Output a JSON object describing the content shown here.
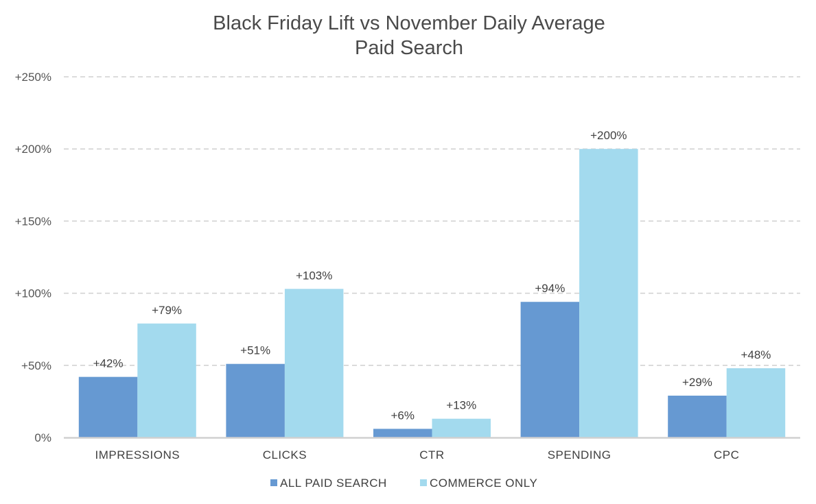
{
  "chart_data": {
    "type": "bar",
    "title": "Black Friday Lift vs November Daily Average",
    "subtitle": "Paid Search",
    "categories": [
      "IMPRESSIONS",
      "CLICKS",
      "CTR",
      "SPENDING",
      "CPC"
    ],
    "series": [
      {
        "name": "ALL PAID SEARCH",
        "values": [
          42,
          51,
          6,
          94,
          29
        ],
        "labels": [
          "+42%",
          "+51%",
          "+6%",
          "+94%",
          "+29%"
        ],
        "color": "#6699d2"
      },
      {
        "name": "COMMERCE ONLY",
        "values": [
          79,
          103,
          13,
          200,
          48
        ],
        "labels": [
          "+79%",
          "+103%",
          "+13%",
          "+200%",
          "+48%"
        ],
        "color": "#a3daee"
      }
    ],
    "ylim": [
      0,
      250
    ],
    "yticks": [
      0,
      50,
      100,
      150,
      200,
      250
    ],
    "ytick_labels": [
      "0%",
      "+50%",
      "+100%",
      "+150%",
      "+200%",
      "+250%"
    ],
    "grid": true,
    "legend": "bottom",
    "xlabel": "",
    "ylabel": ""
  }
}
